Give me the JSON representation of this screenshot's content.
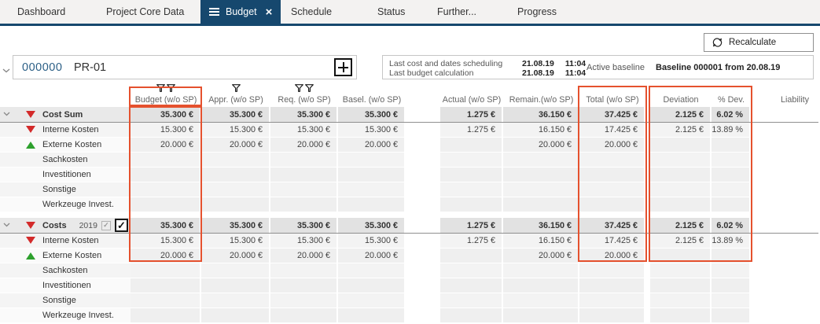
{
  "tabs": {
    "items": [
      {
        "label": "Dashboard",
        "active": false
      },
      {
        "label": "Project Core Data",
        "active": false
      },
      {
        "label": "Budget",
        "active": true
      },
      {
        "label": "Schedule",
        "active": false
      },
      {
        "label": "Status",
        "active": false
      },
      {
        "label": "Further...",
        "active": false
      },
      {
        "label": "Progress",
        "active": false
      }
    ]
  },
  "toolbar": {
    "recalculate_label": "Recalculate"
  },
  "project": {
    "number": "000000",
    "code": "PR-01",
    "info_rows": [
      {
        "label": "Last cost and dates scheduling",
        "date": "21.08.19",
        "time": "11:04"
      },
      {
        "label": "Last budget calculation",
        "date": "21.08.19",
        "time": "11:04"
      }
    ],
    "baseline_label": "Active baseline",
    "baseline_value": "Baseline 000001 from 20.08.19"
  },
  "table": {
    "headers": [
      {
        "key": "budget",
        "label": "Budget (w/o SP)",
        "filters": 2,
        "highlight": true
      },
      {
        "key": "appr",
        "label": "Appr. (w/o SP)",
        "filters": 1,
        "highlight": false
      },
      {
        "key": "req",
        "label": "Req. (w/o SP)",
        "filters": 2,
        "highlight": false
      },
      {
        "key": "basel",
        "label": "Basel. (w/o SP)",
        "filters": 0,
        "highlight": false
      },
      {
        "key": "actual",
        "label": "Actual (w/o SP)",
        "filters": 0,
        "highlight": false
      },
      {
        "key": "remain",
        "label": "Remain.(w/o SP)",
        "filters": 0,
        "highlight": false
      },
      {
        "key": "total",
        "label": "Total (w/o SP)",
        "filters": 0,
        "highlight": true
      },
      {
        "key": "dev",
        "label": "Deviation",
        "filters": 0,
        "highlight": true
      },
      {
        "key": "pdev",
        "label": "% Dev.",
        "filters": 0,
        "highlight": true
      },
      {
        "key": "liability",
        "label": "Liability",
        "filters": 0,
        "highlight": false
      }
    ],
    "groups": [
      {
        "rows": [
          {
            "label": "Cost Sum",
            "is_sum": true,
            "icon": "red-down",
            "values": {
              "budget": "35.300 €",
              "appr": "35.300 €",
              "req": "35.300 €",
              "basel": "35.300 €",
              "actual": "1.275 €",
              "remain": "36.150 €",
              "total": "37.425 €",
              "dev": "2.125 €",
              "pdev": "6.02 %",
              "liability": ""
            }
          },
          {
            "label": "Interne Kosten",
            "is_sum": false,
            "icon": "red-down",
            "values": {
              "budget": "15.300 €",
              "appr": "15.300 €",
              "req": "15.300 €",
              "basel": "15.300 €",
              "actual": "1.275 €",
              "remain": "16.150 €",
              "total": "17.425 €",
              "dev": "2.125 €",
              "pdev": "13.89 %",
              "liability": ""
            }
          },
          {
            "label": "Externe Kosten",
            "is_sum": false,
            "icon": "green-up",
            "values": {
              "budget": "20.000 €",
              "appr": "20.000 €",
              "req": "20.000 €",
              "basel": "20.000 €",
              "actual": "",
              "remain": "20.000 €",
              "total": "20.000 €",
              "dev": "",
              "pdev": "",
              "liability": ""
            }
          },
          {
            "label": "Sachkosten",
            "is_sum": false,
            "icon": null,
            "values": {
              "budget": "",
              "appr": "",
              "req": "",
              "basel": "",
              "actual": "",
              "remain": "",
              "total": "",
              "dev": "",
              "pdev": "",
              "liability": ""
            }
          },
          {
            "label": "Investitionen",
            "is_sum": false,
            "icon": null,
            "values": {
              "budget": "",
              "appr": "",
              "req": "",
              "basel": "",
              "actual": "",
              "remain": "",
              "total": "",
              "dev": "",
              "pdev": "",
              "liability": ""
            }
          },
          {
            "label": "Sonstige",
            "is_sum": false,
            "icon": null,
            "values": {
              "budget": "",
              "appr": "",
              "req": "",
              "basel": "",
              "actual": "",
              "remain": "",
              "total": "",
              "dev": "",
              "pdev": "",
              "liability": ""
            }
          },
          {
            "label": "Werkzeuge Invest.",
            "is_sum": false,
            "icon": null,
            "values": {
              "budget": "",
              "appr": "",
              "req": "",
              "basel": "",
              "actual": "",
              "remain": "",
              "total": "",
              "dev": "",
              "pdev": "",
              "liability": ""
            }
          }
        ]
      },
      {
        "rows": [
          {
            "label": "Costs",
            "is_sum": true,
            "icon": "red-down",
            "year": "2019",
            "checkbox_locked_checked": true,
            "checkbox_active_checked": true,
            "values": {
              "budget": "35.300 €",
              "appr": "35.300 €",
              "req": "35.300 €",
              "basel": "35.300 €",
              "actual": "1.275 €",
              "remain": "36.150 €",
              "total": "37.425 €",
              "dev": "2.125 €",
              "pdev": "6.02 %",
              "liability": ""
            }
          },
          {
            "label": "Interne Kosten",
            "is_sum": false,
            "icon": "red-down",
            "values": {
              "budget": "15.300 €",
              "appr": "15.300 €",
              "req": "15.300 €",
              "basel": "15.300 €",
              "actual": "1.275 €",
              "remain": "16.150 €",
              "total": "17.425 €",
              "dev": "2.125 €",
              "pdev": "13.89 %",
              "liability": ""
            }
          },
          {
            "label": "Externe Kosten",
            "is_sum": false,
            "icon": "green-up",
            "values": {
              "budget": "20.000 €",
              "appr": "20.000 €",
              "req": "20.000 €",
              "basel": "20.000 €",
              "actual": "",
              "remain": "20.000 €",
              "total": "20.000 €",
              "dev": "",
              "pdev": "",
              "liability": ""
            }
          },
          {
            "label": "Sachkosten",
            "is_sum": false,
            "icon": null,
            "values": {
              "budget": "",
              "appr": "",
              "req": "",
              "basel": "",
              "actual": "",
              "remain": "",
              "total": "",
              "dev": "",
              "pdev": "",
              "liability": ""
            }
          },
          {
            "label": "Investitionen",
            "is_sum": false,
            "icon": null,
            "values": {
              "budget": "",
              "appr": "",
              "req": "",
              "basel": "",
              "actual": "",
              "remain": "",
              "total": "",
              "dev": "",
              "pdev": "",
              "liability": ""
            }
          },
          {
            "label": "Sonstige",
            "is_sum": false,
            "icon": null,
            "values": {
              "budget": "",
              "appr": "",
              "req": "",
              "basel": "",
              "actual": "",
              "remain": "",
              "total": "",
              "dev": "",
              "pdev": "",
              "liability": ""
            }
          },
          {
            "label": "Werkzeuge Invest.",
            "is_sum": false,
            "icon": null,
            "values": {
              "budget": "",
              "appr": "",
              "req": "",
              "basel": "",
              "actual": "",
              "remain": "",
              "total": "",
              "dev": "",
              "pdev": "",
              "liability": ""
            }
          }
        ]
      }
    ]
  },
  "icons": {
    "active_tab_menu": "hamburger-icon",
    "active_tab_close": "close-icon",
    "recalculate": "refresh-icon",
    "add_item": "plus-icon",
    "expand_row": "chevron-down-icon",
    "negative_marker": "triangle-down-red",
    "positive_marker": "triangle-up-green",
    "column_filter": "funnel-icon"
  },
  "colors": {
    "accent_navy": "#16486e",
    "highlight_orange": "#e5512e",
    "negative_red": "#d32a2a",
    "positive_green": "#2da02d"
  }
}
